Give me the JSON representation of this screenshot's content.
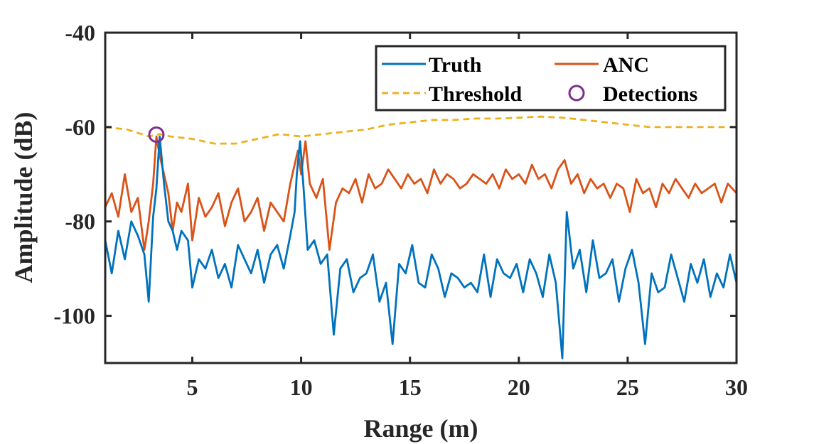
{
  "chart_data": {
    "type": "line",
    "title": "",
    "xlabel": "Range (m)",
    "ylabel": "Amplitude (dB)",
    "xlim": [
      1,
      30
    ],
    "ylim": [
      -110,
      -40
    ],
    "xticks": [
      5,
      10,
      15,
      20,
      25,
      30
    ],
    "yticks": [
      -40,
      -60,
      -80,
      -100
    ],
    "xtick_labels": [
      "5",
      "10",
      "15",
      "20",
      "25",
      "30"
    ],
    "ytick_labels": [
      "-40",
      "-60",
      "-80",
      "-100"
    ],
    "grid": false,
    "legend_position": "top-right",
    "legend": {
      "truth": "Truth",
      "anc": "ANC",
      "threshold": "Threshold",
      "detections": "Detections"
    },
    "colors": {
      "truth": "#0072BD",
      "anc": "#D95319",
      "threshold": "#EDB120",
      "detections": "#7E2F8E"
    },
    "series": [
      {
        "name": "Truth",
        "style": "solid",
        "x": [
          1.0,
          1.3,
          1.6,
          1.9,
          2.2,
          2.5,
          2.8,
          3.0,
          3.2,
          3.35,
          3.5,
          3.7,
          3.9,
          4.1,
          4.3,
          4.5,
          4.8,
          5.0,
          5.3,
          5.6,
          5.9,
          6.2,
          6.5,
          6.8,
          7.1,
          7.4,
          7.7,
          8.0,
          8.3,
          8.6,
          8.9,
          9.2,
          9.5,
          9.7,
          9.8,
          9.95,
          10.1,
          10.3,
          10.6,
          10.9,
          11.2,
          11.5,
          11.8,
          12.1,
          12.4,
          12.7,
          13.0,
          13.3,
          13.6,
          13.9,
          14.2,
          14.5,
          14.8,
          15.1,
          15.4,
          15.7,
          16.0,
          16.3,
          16.6,
          16.9,
          17.2,
          17.5,
          17.8,
          18.1,
          18.4,
          18.7,
          19.0,
          19.3,
          19.6,
          19.9,
          20.2,
          20.5,
          20.8,
          21.1,
          21.4,
          21.7,
          22.0,
          22.2,
          22.5,
          22.8,
          23.1,
          23.4,
          23.7,
          24.0,
          24.3,
          24.6,
          24.9,
          25.2,
          25.5,
          25.8,
          26.1,
          26.4,
          26.7,
          27.0,
          27.3,
          27.6,
          27.9,
          28.2,
          28.5,
          28.8,
          29.1,
          29.4,
          29.7,
          30.0
        ],
        "values": [
          -84,
          -91,
          -82,
          -88,
          -80,
          -83,
          -87,
          -97,
          -79,
          -73,
          -62,
          -72,
          -80,
          -82,
          -86,
          -82,
          -84,
          -94,
          -88,
          -90,
          -86,
          -92,
          -89,
          -94,
          -85,
          -88,
          -91,
          -86,
          -93,
          -87,
          -85,
          -90,
          -83,
          -78,
          -70,
          -63,
          -72,
          -86,
          -84,
          -89,
          -87,
          -104,
          -90,
          -88,
          -95,
          -92,
          -91,
          -87,
          -97,
          -93,
          -106,
          -89,
          -91,
          -85,
          -93,
          -94,
          -87,
          -90,
          -96,
          -91,
          -92,
          -94,
          -93,
          -95,
          -87,
          -96,
          -88,
          -91,
          -92,
          -89,
          -95,
          -88,
          -91,
          -96,
          -87,
          -93,
          -109,
          -78,
          -90,
          -86,
          -95,
          -84,
          -92,
          -91,
          -88,
          -97,
          -90,
          -86,
          -93,
          -106,
          -91,
          -95,
          -94,
          -87,
          -92,
          -97,
          -89,
          -93,
          -88,
          -96,
          -91,
          -94,
          -87,
          -93
        ]
      },
      {
        "name": "ANC",
        "style": "solid",
        "x": [
          1.0,
          1.3,
          1.6,
          1.9,
          2.2,
          2.5,
          2.8,
          3.0,
          3.2,
          3.35,
          3.5,
          3.7,
          3.9,
          4.1,
          4.3,
          4.5,
          4.8,
          5.0,
          5.3,
          5.6,
          5.9,
          6.2,
          6.5,
          6.8,
          7.1,
          7.4,
          7.7,
          8.0,
          8.3,
          8.6,
          8.9,
          9.2,
          9.5,
          9.7,
          9.85,
          10.0,
          10.2,
          10.4,
          10.7,
          11.0,
          11.3,
          11.6,
          11.9,
          12.2,
          12.5,
          12.8,
          13.1,
          13.4,
          13.7,
          14.0,
          14.3,
          14.6,
          14.9,
          15.2,
          15.5,
          15.8,
          16.1,
          16.4,
          16.7,
          17.0,
          17.3,
          17.6,
          17.9,
          18.2,
          18.5,
          18.8,
          19.1,
          19.4,
          19.7,
          20.0,
          20.3,
          20.6,
          20.9,
          21.2,
          21.5,
          21.8,
          22.1,
          22.4,
          22.7,
          23.0,
          23.3,
          23.6,
          23.9,
          24.2,
          24.5,
          24.8,
          25.1,
          25.4,
          25.7,
          26.0,
          26.3,
          26.6,
          26.9,
          27.2,
          27.5,
          27.8,
          28.1,
          28.4,
          28.7,
          29.0,
          29.3,
          29.6,
          30.0
        ],
        "values": [
          -77,
          -74,
          -79,
          -70,
          -78,
          -75,
          -86,
          -80,
          -72,
          -62,
          -66,
          -70,
          -74,
          -82,
          -76,
          -78,
          -72,
          -84,
          -75,
          -79,
          -77,
          -74,
          -81,
          -76,
          -73,
          -80,
          -78,
          -75,
          -82,
          -76,
          -78,
          -80,
          -72,
          -68,
          -65,
          -70,
          -63,
          -72,
          -75,
          -71,
          -86,
          -76,
          -73,
          -74,
          -71,
          -76,
          -70,
          -73,
          -72,
          -69,
          -71,
          -73,
          -70,
          -72,
          -71,
          -74,
          -69,
          -72,
          -70,
          -71,
          -73,
          -72,
          -70,
          -71,
          -72,
          -70,
          -73,
          -69,
          -71,
          -70,
          -72,
          -68,
          -71,
          -70,
          -73,
          -69,
          -67,
          -72,
          -70,
          -74,
          -71,
          -73,
          -72,
          -75,
          -72,
          -73,
          -78,
          -71,
          -74,
          -73,
          -77,
          -72,
          -74,
          -71,
          -73,
          -75,
          -72,
          -74,
          -73,
          -72,
          -76,
          -72,
          -74
        ]
      },
      {
        "name": "Threshold",
        "style": "dashed",
        "x": [
          1.0,
          2.0,
          3.0,
          3.5,
          4.0,
          5.0,
          6.0,
          7.0,
          8.0,
          9.0,
          10.0,
          11.0,
          12.0,
          13.0,
          14.0,
          15.0,
          16.0,
          17.0,
          18.0,
          19.0,
          20.0,
          21.0,
          22.0,
          23.0,
          24.0,
          25.0,
          26.0,
          27.0,
          28.0,
          29.0,
          30.0
        ],
        "values": [
          -60,
          -60.5,
          -62,
          -61.5,
          -62,
          -62.5,
          -63.5,
          -63.5,
          -62.5,
          -61.5,
          -62,
          -61.5,
          -61,
          -60.5,
          -59.5,
          -59,
          -58.5,
          -58.5,
          -58.2,
          -58.2,
          -58,
          -57.8,
          -58,
          -58.5,
          -59,
          -59.5,
          -60,
          -60,
          -60,
          -60,
          -60
        ]
      }
    ],
    "detections": {
      "name": "Detections",
      "x": [
        3.35
      ],
      "y": [
        -61.6
      ]
    }
  }
}
